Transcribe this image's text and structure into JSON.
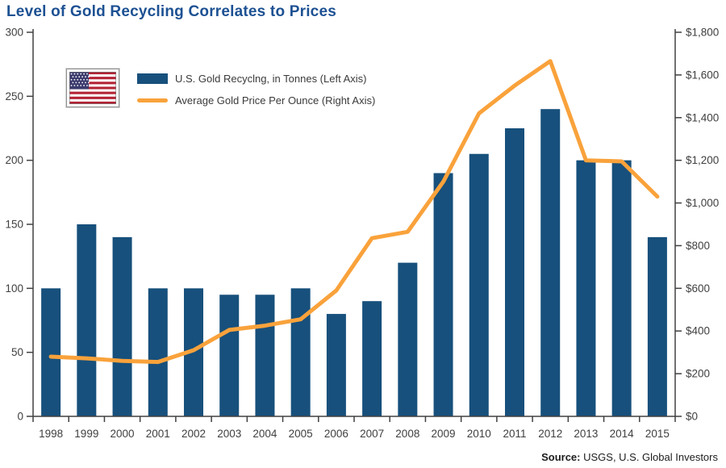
{
  "title": "Level of Gold Recycling Correlates to Prices",
  "source": {
    "prefix": "Source:",
    "text": " USGS, U.S. Global Investors"
  },
  "legend": {
    "flag_icon": "us-flag-icon",
    "items": [
      {
        "label": "U.S. Gold Recyclng, in Tonnes (Left Axis)",
        "swatch": "bar",
        "color": "#17507C"
      },
      {
        "label": "Average Gold Price Per Ounce (Right Axis)",
        "swatch": "line",
        "color": "#F9A23B"
      }
    ]
  },
  "chart_data": {
    "type": "bar",
    "combo_with_line": true,
    "title": "Level of Gold Recycling Correlates to Prices",
    "categories": [
      "1998",
      "1999",
      "2000",
      "2001",
      "2002",
      "2003",
      "2004",
      "2005",
      "2006",
      "2007",
      "2008",
      "2009",
      "2010",
      "2011",
      "2012",
      "2013",
      "2014",
      "2015"
    ],
    "series": [
      {
        "name": "U.S. Gold Recyclng, in Tonnes (Left Axis)",
        "type": "bar",
        "axis": "left",
        "color": "#17507C",
        "values": [
          100,
          150,
          140,
          100,
          100,
          95,
          95,
          100,
          80,
          90,
          120,
          190,
          205,
          225,
          240,
          200,
          200,
          140
        ]
      },
      {
        "name": "Average Gold Price Per Ounce (Right Axis)",
        "type": "line",
        "axis": "right",
        "color": "#F9A23B",
        "values": [
          280,
          272,
          260,
          255,
          310,
          405,
          425,
          455,
          590,
          835,
          865,
          1100,
          1420,
          1550,
          1665,
          1200,
          1195,
          1030
        ]
      }
    ],
    "left_axis": {
      "min": 0,
      "max": 300,
      "step": 50,
      "tick_labels": [
        "0",
        "50",
        "100",
        "150",
        "200",
        "250",
        "300"
      ]
    },
    "right_axis": {
      "min": 0,
      "max": 1800,
      "step": 200,
      "tick_labels": [
        "$0",
        "$200",
        "$400",
        "$600",
        "$800",
        "$1,000",
        "$1,200",
        "$1,400",
        "$1,600",
        "$1,800"
      ]
    },
    "grid": false,
    "legend_position": "inside-top-left",
    "axis_color": "#404040",
    "tick_text_color": "#3f3f3f"
  }
}
